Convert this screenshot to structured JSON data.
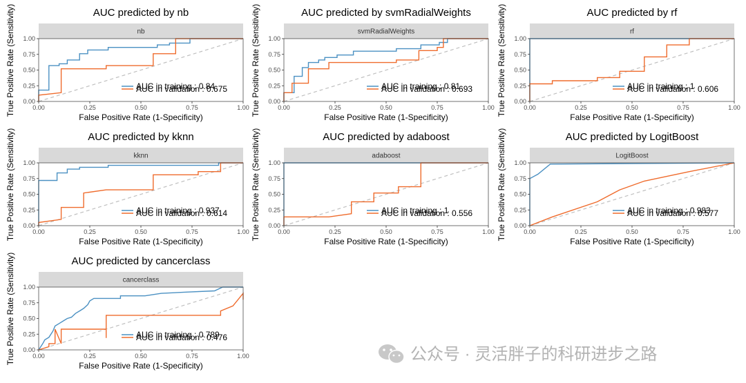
{
  "x_axis_label": "False Positive Rate (1-Specificity)",
  "y_axis_label": "True Positive Rate (Sensitivity)",
  "tick_labels": [
    "0.00",
    "0.25",
    "0.50",
    "0.75",
    "1.00"
  ],
  "colors": {
    "training": "#4a90c2",
    "validation": "#ef6b2c",
    "diagonal": "#bfbfbf",
    "strip": "#d9d9d9",
    "border": "#4d4d4d"
  },
  "watermark": {
    "icon": "wechat-icon",
    "text": "公众号 · 灵活胖子的科研进步之路"
  },
  "chart_data": [
    {
      "type": "line",
      "title": "AUC predicted by nb",
      "strip_label": "nb",
      "xlabel": "False Positive Rate (1-Specificity)",
      "ylabel": "True Positive Rate (Sensitivity)",
      "xlim": [
        0,
        1
      ],
      "ylim": [
        0,
        1
      ],
      "legend_position": "bottom-right",
      "series": [
        {
          "name": "training",
          "legend_label": "AUC in training : 0.84",
          "points": [
            [
              0,
              0
            ],
            [
              0,
              0.18
            ],
            [
              0.05,
              0.18
            ],
            [
              0.05,
              0.57
            ],
            [
              0.1,
              0.57
            ],
            [
              0.1,
              0.6
            ],
            [
              0.14,
              0.6
            ],
            [
              0.14,
              0.66
            ],
            [
              0.2,
              0.66
            ],
            [
              0.2,
              0.76
            ],
            [
              0.24,
              0.76
            ],
            [
              0.24,
              0.82
            ],
            [
              0.34,
              0.82
            ],
            [
              0.34,
              0.86
            ],
            [
              0.58,
              0.86
            ],
            [
              0.58,
              0.9
            ],
            [
              0.64,
              0.9
            ],
            [
              0.64,
              0.93
            ],
            [
              0.74,
              0.93
            ],
            [
              0.74,
              1
            ],
            [
              1,
              1
            ]
          ]
        },
        {
          "name": "validation",
          "legend_label": "AUC in validation : 0.675",
          "points": [
            [
              0,
              0
            ],
            [
              0,
              0.1
            ],
            [
              0.11,
              0.14
            ],
            [
              0.11,
              0.52
            ],
            [
              0.33,
              0.52
            ],
            [
              0.33,
              0.57
            ],
            [
              0.56,
              0.57
            ],
            [
              0.56,
              0.76
            ],
            [
              0.67,
              0.76
            ],
            [
              0.67,
              1
            ],
            [
              1,
              1
            ]
          ]
        }
      ]
    },
    {
      "type": "line",
      "title": "AUC predicted by svmRadialWeights",
      "strip_label": "svmRadialWeights",
      "xlabel": "False Positive Rate (1-Specificity)",
      "ylabel": "True Positive Rate (Sensitivity)",
      "xlim": [
        0,
        1
      ],
      "ylim": [
        0,
        1
      ],
      "legend_position": "bottom-right",
      "series": [
        {
          "name": "training",
          "legend_label": "AUC in training : 0.81",
          "points": [
            [
              0,
              0
            ],
            [
              0,
              0.14
            ],
            [
              0.05,
              0.14
            ],
            [
              0.05,
              0.4
            ],
            [
              0.09,
              0.4
            ],
            [
              0.09,
              0.54
            ],
            [
              0.12,
              0.54
            ],
            [
              0.12,
              0.62
            ],
            [
              0.17,
              0.62
            ],
            [
              0.17,
              0.66
            ],
            [
              0.2,
              0.66
            ],
            [
              0.2,
              0.7
            ],
            [
              0.26,
              0.7
            ],
            [
              0.26,
              0.74
            ],
            [
              0.34,
              0.74
            ],
            [
              0.34,
              0.8
            ],
            [
              0.55,
              0.8
            ],
            [
              0.55,
              0.84
            ],
            [
              0.67,
              0.84
            ],
            [
              0.67,
              0.9
            ],
            [
              0.76,
              0.9
            ],
            [
              0.76,
              0.94
            ],
            [
              0.8,
              0.94
            ],
            [
              0.8,
              1
            ],
            [
              1,
              1
            ]
          ]
        },
        {
          "name": "validation",
          "legend_label": "AUC in validation : 0.693",
          "points": [
            [
              0,
              0
            ],
            [
              0,
              0.14
            ],
            [
              0.04,
              0.14
            ],
            [
              0.04,
              0.29
            ],
            [
              0.12,
              0.29
            ],
            [
              0.12,
              0.52
            ],
            [
              0.22,
              0.52
            ],
            [
              0.22,
              0.62
            ],
            [
              0.55,
              0.62
            ],
            [
              0.55,
              0.66
            ],
            [
              0.66,
              0.66
            ],
            [
              0.66,
              0.81
            ],
            [
              0.75,
              0.81
            ],
            [
              0.75,
              0.86
            ],
            [
              0.78,
              0.86
            ],
            [
              0.78,
              1
            ],
            [
              1,
              1
            ]
          ]
        }
      ]
    },
    {
      "type": "line",
      "title": "AUC predicted by rf",
      "strip_label": "rf",
      "xlabel": "False Positive Rate (1-Specificity)",
      "ylabel": "True Positive Rate (Sensitivity)",
      "xlim": [
        0,
        1
      ],
      "ylim": [
        0,
        1
      ],
      "legend_position": "bottom-right",
      "series": [
        {
          "name": "training",
          "legend_label": "AUC in training : 1",
          "points": [
            [
              0,
              0
            ],
            [
              0,
              1
            ],
            [
              1,
              1
            ]
          ]
        },
        {
          "name": "validation",
          "legend_label": "AUC in validation : 0.606",
          "points": [
            [
              0,
              0
            ],
            [
              0,
              0.28
            ],
            [
              0.11,
              0.28
            ],
            [
              0.11,
              0.33
            ],
            [
              0.33,
              0.33
            ],
            [
              0.33,
              0.38
            ],
            [
              0.44,
              0.38
            ],
            [
              0.44,
              0.48
            ],
            [
              0.56,
              0.48
            ],
            [
              0.56,
              0.71
            ],
            [
              0.67,
              0.71
            ],
            [
              0.67,
              0.9
            ],
            [
              0.78,
              0.9
            ],
            [
              0.78,
              1
            ],
            [
              1,
              1
            ]
          ]
        }
      ]
    },
    {
      "type": "line",
      "title": "AUC predicted by kknn",
      "strip_label": "kknn",
      "xlabel": "False Positive Rate (1-Specificity)",
      "ylabel": "True Positive Rate (Sensitivity)",
      "xlim": [
        0,
        1
      ],
      "ylim": [
        0,
        1
      ],
      "legend_position": "bottom-right",
      "series": [
        {
          "name": "training",
          "legend_label": "AUC in training : 0.937",
          "points": [
            [
              0,
              0
            ],
            [
              0,
              0.72
            ],
            [
              0.09,
              0.72
            ],
            [
              0.09,
              0.84
            ],
            [
              0.14,
              0.84
            ],
            [
              0.14,
              0.9
            ],
            [
              0.2,
              0.9
            ],
            [
              0.2,
              0.93
            ],
            [
              0.34,
              0.93
            ],
            [
              0.34,
              0.96
            ],
            [
              0.88,
              0.96
            ],
            [
              0.88,
              1
            ],
            [
              1,
              1
            ]
          ]
        },
        {
          "name": "validation",
          "legend_label": "AUC in validation : 0.614",
          "points": [
            [
              0,
              0
            ],
            [
              0,
              0.05
            ],
            [
              0.11,
              0.1
            ],
            [
              0.11,
              0.29
            ],
            [
              0.22,
              0.29
            ],
            [
              0.22,
              0.52
            ],
            [
              0.33,
              0.57
            ],
            [
              0.56,
              0.57
            ],
            [
              0.56,
              0.81
            ],
            [
              0.78,
              0.81
            ],
            [
              0.78,
              0.86
            ],
            [
              0.89,
              0.86
            ],
            [
              0.89,
              1
            ],
            [
              1,
              1
            ]
          ]
        }
      ]
    },
    {
      "type": "line",
      "title": "AUC predicted by adaboost",
      "strip_label": "adaboost",
      "xlabel": "False Positive Rate (1-Specificity)",
      "ylabel": "True Positive Rate (Sensitivity)",
      "xlim": [
        0,
        1
      ],
      "ylim": [
        0,
        1
      ],
      "legend_position": "bottom-right",
      "series": [
        {
          "name": "training",
          "legend_label": "AUC in training : 1",
          "points": [
            [
              0,
              0
            ],
            [
              0,
              1
            ],
            [
              1,
              1
            ]
          ]
        },
        {
          "name": "validation",
          "legend_label": "AUC in validation : 0.556",
          "points": [
            [
              0,
              0
            ],
            [
              0,
              0.14
            ],
            [
              0.22,
              0.14
            ],
            [
              0.33,
              0.19
            ],
            [
              0.33,
              0.38
            ],
            [
              0.44,
              0.38
            ],
            [
              0.44,
              0.52
            ],
            [
              0.56,
              0.52
            ],
            [
              0.56,
              0.62
            ],
            [
              0.67,
              0.62
            ],
            [
              0.67,
              1
            ],
            [
              1,
              1
            ]
          ]
        }
      ]
    },
    {
      "type": "line",
      "title": "AUC predicted by LogitBoost",
      "strip_label": "LogitBoost",
      "xlabel": "False Positive Rate (1-Specificity)",
      "ylabel": "True Positive Rate (Sensitivity)",
      "xlim": [
        0,
        1
      ],
      "ylim": [
        0,
        1
      ],
      "legend_position": "bottom-right",
      "series": [
        {
          "name": "training",
          "legend_label": "AUC in training : 0.983",
          "points": [
            [
              0,
              0
            ],
            [
              0,
              0.75
            ],
            [
              0.04,
              0.82
            ],
            [
              0.1,
              0.98
            ],
            [
              1,
              1
            ]
          ]
        },
        {
          "name": "validation",
          "legend_label": "AUC in validation : 0.577",
          "points": [
            [
              0,
              0
            ],
            [
              0.11,
              0.14
            ],
            [
              0.33,
              0.38
            ],
            [
              0.44,
              0.57
            ],
            [
              0.56,
              0.71
            ],
            [
              0.78,
              0.86
            ],
            [
              1,
              1
            ]
          ]
        }
      ]
    },
    {
      "type": "line",
      "title": "AUC predicted by cancerclass",
      "strip_label": "cancerclass",
      "xlabel": "False Positive Rate (1-Specificity)",
      "ylabel": "True Positive Rate (Sensitivity)",
      "xlim": [
        0,
        1
      ],
      "ylim": [
        0,
        1
      ],
      "legend_position": "bottom-right",
      "series": [
        {
          "name": "training",
          "legend_label": "AUC in training : 0.789",
          "points": [
            [
              0,
              0
            ],
            [
              0.02,
              0.1
            ],
            [
              0.03,
              0.16
            ],
            [
              0.05,
              0.2
            ],
            [
              0.07,
              0.3
            ],
            [
              0.08,
              0.38
            ],
            [
              0.1,
              0.42
            ],
            [
              0.12,
              0.46
            ],
            [
              0.14,
              0.5
            ],
            [
              0.16,
              0.52
            ],
            [
              0.18,
              0.58
            ],
            [
              0.2,
              0.62
            ],
            [
              0.22,
              0.66
            ],
            [
              0.24,
              0.72
            ],
            [
              0.25,
              0.78
            ],
            [
              0.27,
              0.82
            ],
            [
              0.4,
              0.82
            ],
            [
              0.4,
              0.86
            ],
            [
              0.52,
              0.86
            ],
            [
              0.6,
              0.9
            ],
            [
              0.72,
              0.92
            ],
            [
              0.86,
              0.94
            ],
            [
              0.9,
              1
            ],
            [
              1,
              1
            ]
          ]
        },
        {
          "name": "validation",
          "legend_label": "AUC in validation : 0.476",
          "points": [
            [
              0,
              0
            ],
            [
              0.05,
              0.05
            ],
            [
              0.05,
              0.1
            ],
            [
              0.08,
              0.1
            ],
            [
              0.08,
              0.33
            ],
            [
              0.11,
              0.1
            ],
            [
              0.11,
              0.33
            ],
            [
              0.33,
              0.33
            ],
            [
              0.33,
              0.19
            ],
            [
              0.33,
              0.55
            ],
            [
              0.4,
              0.55
            ],
            [
              0.89,
              0.55
            ],
            [
              0.89,
              0.62
            ],
            [
              0.95,
              0.7
            ],
            [
              1,
              0.9
            ],
            [
              1,
              0.8
            ]
          ]
        }
      ]
    }
  ]
}
